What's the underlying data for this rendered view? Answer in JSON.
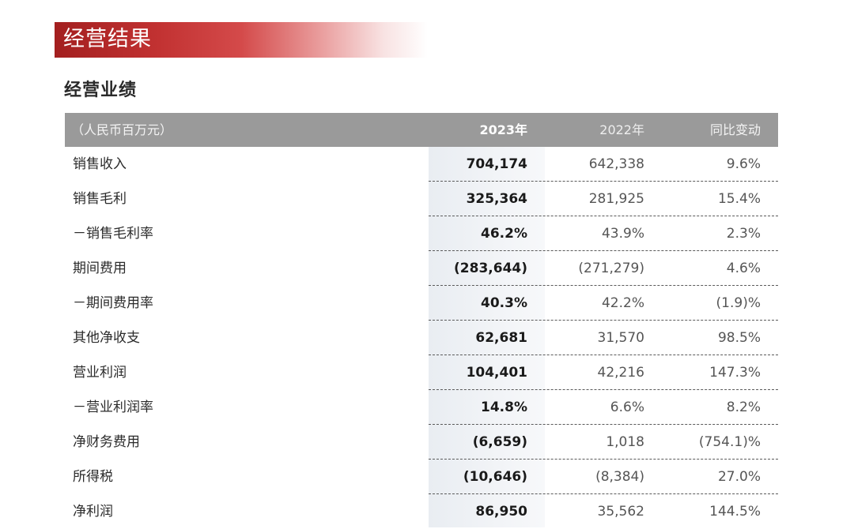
{
  "banner": {
    "title": "经营结果"
  },
  "section": {
    "title": "经营业绩"
  },
  "table": {
    "headers": {
      "label": "（人民币百万元）",
      "y2023": "2023年",
      "y2022": "2022年",
      "yoy": "同比变动"
    },
    "rows": [
      {
        "label": "销售收入",
        "y2023": "704,174",
        "y2022": "642,338",
        "yoy": "9.6%"
      },
      {
        "label": "销售毛利",
        "y2023": "325,364",
        "y2022": "281,925",
        "yoy": "15.4%"
      },
      {
        "label": "－销售毛利率",
        "y2023": "46.2%",
        "y2022": "43.9%",
        "yoy": "2.3%"
      },
      {
        "label": "期间费用",
        "y2023": "(283,644)",
        "y2022": "(271,279)",
        "yoy": "4.6%"
      },
      {
        "label": "－期间费用率",
        "y2023": "40.3%",
        "y2022": "42.2%",
        "yoy": "(1.9)%"
      },
      {
        "label": "其他净收支",
        "y2023": "62,681",
        "y2022": "31,570",
        "yoy": "98.5%"
      },
      {
        "label": "营业利润",
        "y2023": "104,401",
        "y2022": "42,216",
        "yoy": "147.3%"
      },
      {
        "label": "－营业利润率",
        "y2023": "14.8%",
        "y2022": "6.6%",
        "yoy": "8.2%"
      },
      {
        "label": "净财务费用",
        "y2023": "(6,659)",
        "y2022": "1,018",
        "yoy": "(754.1)%"
      },
      {
        "label": "所得税",
        "y2023": "(10,646)",
        "y2022": "(8,384)",
        "yoy": "27.0%"
      },
      {
        "label": "净利润",
        "y2023": "86,950",
        "y2022": "35,562",
        "yoy": "144.5%"
      }
    ]
  }
}
